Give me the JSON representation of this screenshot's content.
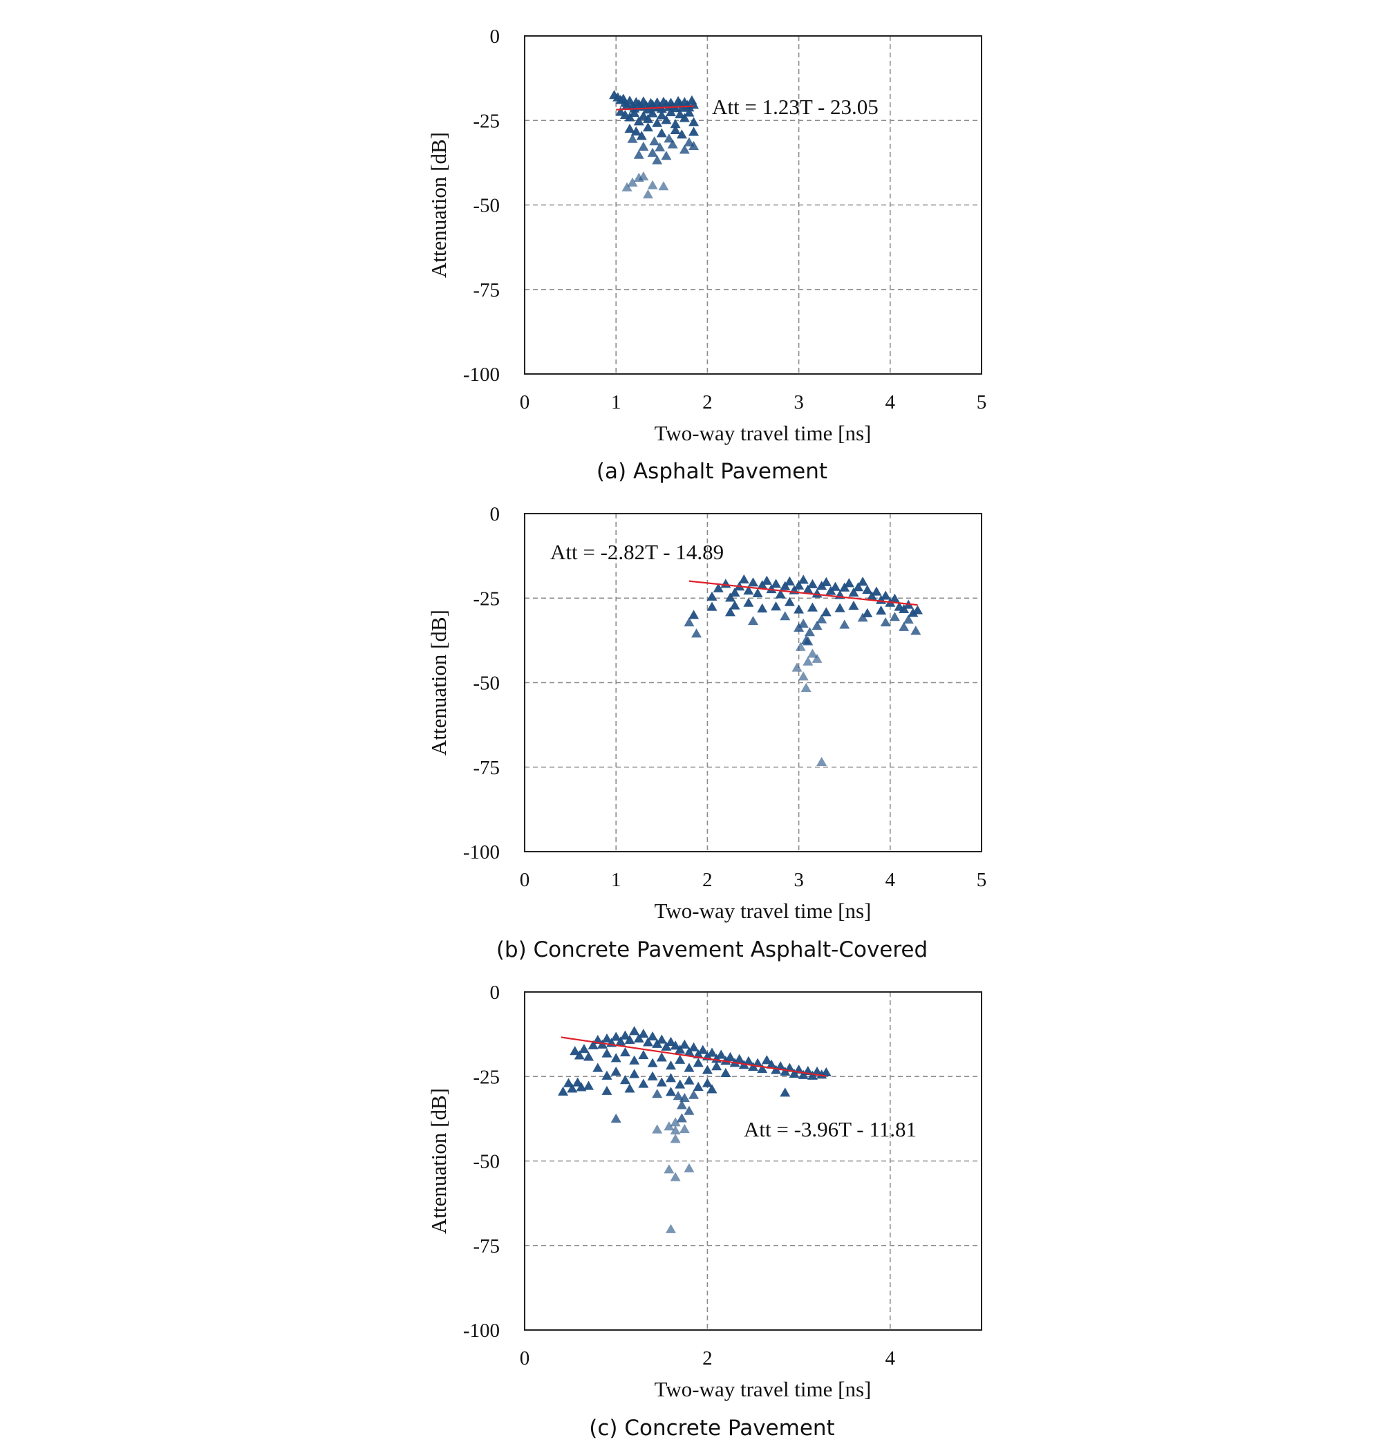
{
  "colors": {
    "marker": "#1f4e82",
    "fit_line": "#e0212a",
    "grid": "#8c8c8c"
  },
  "chart_data": [
    {
      "type": "scatter",
      "caption": "(a) Asphalt Pavement",
      "xlabel": "Two-way travel time [ns]",
      "ylabel": "Attenuation  [dB]",
      "xlim": [
        0,
        5
      ],
      "ylim": [
        -100,
        0
      ],
      "x_ticks": [
        "0",
        "1",
        "2",
        "3",
        "4",
        "5"
      ],
      "y_ticks": [
        "0",
        "-25",
        "-50",
        "-75",
        "-100"
      ],
      "equation": "Att = 1.23T - 23.05",
      "fit": {
        "slope": 1.23,
        "intercept": -23.05,
        "x_range": [
          1.0,
          1.85
        ]
      },
      "points": [
        [
          0.98,
          -17.5
        ],
        [
          1.02,
          -18.2
        ],
        [
          1.05,
          -19.0
        ],
        [
          1.08,
          -18.6
        ],
        [
          1.1,
          -19.8
        ],
        [
          1.12,
          -20.5
        ],
        [
          1.15,
          -19.2
        ],
        [
          1.18,
          -20.8
        ],
        [
          1.2,
          -21.5
        ],
        [
          1.22,
          -19.6
        ],
        [
          1.25,
          -20.2
        ],
        [
          1.28,
          -21.0
        ],
        [
          1.3,
          -19.4
        ],
        [
          1.33,
          -20.6
        ],
        [
          1.35,
          -21.8
        ],
        [
          1.38,
          -19.9
        ],
        [
          1.4,
          -20.4
        ],
        [
          1.42,
          -21.2
        ],
        [
          1.45,
          -19.7
        ],
        [
          1.48,
          -20.9
        ],
        [
          1.5,
          -21.6
        ],
        [
          1.52,
          -19.5
        ],
        [
          1.55,
          -20.3
        ],
        [
          1.58,
          -21.1
        ],
        [
          1.6,
          -19.8
        ],
        [
          1.62,
          -20.7
        ],
        [
          1.65,
          -21.4
        ],
        [
          1.68,
          -19.3
        ],
        [
          1.7,
          -20.1
        ],
        [
          1.72,
          -21.3
        ],
        [
          1.75,
          -19.6
        ],
        [
          1.78,
          -20.5
        ],
        [
          1.8,
          -21.2
        ],
        [
          1.83,
          -19.1
        ],
        [
          1.85,
          -20.4
        ],
        [
          1.05,
          -22.5
        ],
        [
          1.1,
          -23.4
        ],
        [
          1.15,
          -24.1
        ],
        [
          1.2,
          -22.8
        ],
        [
          1.25,
          -25.3
        ],
        [
          1.3,
          -23.7
        ],
        [
          1.35,
          -24.6
        ],
        [
          1.4,
          -22.9
        ],
        [
          1.45,
          -25.8
        ],
        [
          1.5,
          -23.5
        ],
        [
          1.55,
          -24.9
        ],
        [
          1.6,
          -22.6
        ],
        [
          1.65,
          -26.1
        ],
        [
          1.7,
          -23.2
        ],
        [
          1.75,
          -24.3
        ],
        [
          1.8,
          -22.7
        ],
        [
          1.85,
          -25.5
        ],
        [
          1.15,
          -27.5
        ],
        [
          1.22,
          -28.3
        ],
        [
          1.28,
          -29.6
        ],
        [
          1.35,
          -27.1
        ],
        [
          1.42,
          -31.2
        ],
        [
          1.5,
          -28.8
        ],
        [
          1.58,
          -30.4
        ],
        [
          1.65,
          -27.9
        ],
        [
          1.72,
          -29.2
        ],
        [
          1.8,
          -31.5
        ],
        [
          1.85,
          -28.4
        ],
        [
          1.18,
          -30.5
        ],
        [
          1.3,
          -32.8
        ],
        [
          1.4,
          -34.6
        ],
        [
          1.48,
          -33.0
        ],
        [
          1.55,
          -35.5
        ],
        [
          1.62,
          -32.1
        ],
        [
          1.75,
          -33.7
        ],
        [
          1.25,
          -35.2
        ],
        [
          1.45,
          -36.8
        ],
        [
          1.85,
          -32.6
        ],
        [
          1.12,
          -44.8
        ],
        [
          1.18,
          -43.4
        ],
        [
          1.3,
          -41.6
        ],
        [
          1.35,
          -46.9
        ],
        [
          1.4,
          -44.2
        ],
        [
          1.52,
          -44.5
        ],
        [
          1.25,
          -42.0
        ]
      ]
    },
    {
      "type": "scatter",
      "caption": "(b) Concrete Pavement Asphalt-Covered",
      "xlabel": "Two-way travel time [ns]",
      "ylabel": "Attenuation  [dB]",
      "xlim": [
        0,
        5
      ],
      "ylim": [
        -100,
        0
      ],
      "x_ticks": [
        "0",
        "1",
        "2",
        "3",
        "4",
        "5"
      ],
      "y_ticks": [
        "0",
        "-25",
        "-50",
        "-75",
        "-100"
      ],
      "equation": "Att = -2.82T - 14.89",
      "fit": {
        "slope": -2.82,
        "intercept": -14.89,
        "x_range": [
          1.8,
          4.3
        ]
      },
      "points": [
        [
          1.8,
          -32.2
        ],
        [
          1.85,
          -30.0
        ],
        [
          1.88,
          -35.5
        ],
        [
          2.05,
          -24.6
        ],
        [
          2.12,
          -22.1
        ],
        [
          2.2,
          -20.8
        ],
        [
          2.25,
          -24.9
        ],
        [
          2.3,
          -23.4
        ],
        [
          2.35,
          -21.6
        ],
        [
          2.4,
          -19.5
        ],
        [
          2.45,
          -22.8
        ],
        [
          2.5,
          -20.4
        ],
        [
          2.55,
          -23.6
        ],
        [
          2.6,
          -21.2
        ],
        [
          2.65,
          -19.9
        ],
        [
          2.7,
          -22.4
        ],
        [
          2.75,
          -20.8
        ],
        [
          2.8,
          -23.9
        ],
        [
          2.85,
          -21.5
        ],
        [
          2.9,
          -20.1
        ],
        [
          2.95,
          -22.7
        ],
        [
          3.0,
          -21.3
        ],
        [
          3.05,
          -19.6
        ],
        [
          3.1,
          -22.5
        ],
        [
          3.15,
          -20.9
        ],
        [
          3.2,
          -23.7
        ],
        [
          3.25,
          -21.4
        ],
        [
          3.3,
          -20.3
        ],
        [
          3.35,
          -22.9
        ],
        [
          3.4,
          -21.7
        ],
        [
          3.45,
          -24.1
        ],
        [
          3.5,
          -21.9
        ],
        [
          3.55,
          -20.6
        ],
        [
          3.6,
          -23.4
        ],
        [
          3.65,
          -21.8
        ],
        [
          3.7,
          -20.2
        ],
        [
          3.75,
          -22.6
        ],
        [
          3.8,
          -24.5
        ],
        [
          3.85,
          -23.1
        ],
        [
          3.9,
          -25.6
        ],
        [
          3.95,
          -24.3
        ],
        [
          4.0,
          -26.4
        ],
        [
          4.05,
          -25.2
        ],
        [
          4.1,
          -27.6
        ],
        [
          4.15,
          -28.3
        ],
        [
          4.2,
          -27.0
        ],
        [
          4.25,
          -29.4
        ],
        [
          4.3,
          -28.6
        ],
        [
          2.3,
          -27.2
        ],
        [
          2.45,
          -26.4
        ],
        [
          2.6,
          -28.1
        ],
        [
          2.75,
          -27.5
        ],
        [
          2.9,
          -26.2
        ],
        [
          3.0,
          -28.4
        ],
        [
          3.15,
          -27.8
        ],
        [
          3.3,
          -29.2
        ],
        [
          3.45,
          -28.0
        ],
        [
          3.6,
          -27.3
        ],
        [
          3.75,
          -29.5
        ],
        [
          3.9,
          -28.7
        ],
        [
          4.05,
          -30.6
        ],
        [
          4.2,
          -31.4
        ],
        [
          2.5,
          -31.8
        ],
        [
          2.85,
          -30.4
        ],
        [
          3.05,
          -32.6
        ],
        [
          3.25,
          -31.3
        ],
        [
          3.5,
          -32.9
        ],
        [
          3.7,
          -30.8
        ],
        [
          3.95,
          -32.2
        ],
        [
          4.15,
          -33.6
        ],
        [
          4.28,
          -34.7
        ],
        [
          2.05,
          -27.6
        ],
        [
          2.25,
          -29.2
        ],
        [
          3.0,
          -33.8
        ],
        [
          3.08,
          -37.5
        ],
        [
          3.12,
          -35.1
        ],
        [
          3.2,
          -33.2
        ],
        [
          3.02,
          -39.5
        ],
        [
          3.1,
          -37.8
        ],
        [
          2.98,
          -45.6
        ],
        [
          3.05,
          -48.2
        ],
        [
          3.1,
          -43.8
        ],
        [
          3.15,
          -41.5
        ],
        [
          3.2,
          -43.0
        ],
        [
          3.08,
          -51.6
        ],
        [
          3.25,
          -73.5
        ]
      ]
    },
    {
      "type": "scatter",
      "caption": "(c) Concrete Pavement",
      "xlabel": "Two-way travel time [ns]",
      "ylabel": "Attenuation  [dB]",
      "xlim": [
        0,
        5
      ],
      "ylim": [
        -100,
        0
      ],
      "x_ticks": [
        "0",
        "2",
        "4"
      ],
      "y_ticks": [
        "0",
        "-25",
        "-50",
        "-75",
        "-100"
      ],
      "equation": "Att = -3.96T - 11.81",
      "fit": {
        "slope": -3.96,
        "intercept": -11.81,
        "x_range": [
          0.4,
          3.3
        ]
      },
      "points": [
        [
          0.42,
          -29.5
        ],
        [
          0.48,
          -27.0
        ],
        [
          0.52,
          -28.6
        ],
        [
          0.58,
          -26.8
        ],
        [
          0.62,
          -28.2
        ],
        [
          0.55,
          -17.5
        ],
        [
          0.6,
          -18.8
        ],
        [
          0.65,
          -16.9
        ],
        [
          0.7,
          -19.2
        ],
        [
          0.75,
          -15.8
        ],
        [
          0.8,
          -14.2
        ],
        [
          0.85,
          -15.6
        ],
        [
          0.9,
          -13.8
        ],
        [
          0.95,
          -15.1
        ],
        [
          1.0,
          -13.3
        ],
        [
          1.05,
          -14.7
        ],
        [
          1.1,
          -12.9
        ],
        [
          1.15,
          -14.2
        ],
        [
          1.2,
          -11.6
        ],
        [
          1.25,
          -13.8
        ],
        [
          1.3,
          -12.4
        ],
        [
          1.35,
          -14.9
        ],
        [
          1.4,
          -13.2
        ],
        [
          1.45,
          -15.4
        ],
        [
          1.5,
          -14.1
        ],
        [
          1.55,
          -16.2
        ],
        [
          1.6,
          -14.8
        ],
        [
          1.65,
          -15.9
        ],
        [
          1.7,
          -17.1
        ],
        [
          1.75,
          -15.6
        ],
        [
          1.8,
          -17.8
        ],
        [
          1.85,
          -16.4
        ],
        [
          1.9,
          -18.5
        ],
        [
          1.95,
          -17.2
        ],
        [
          2.0,
          -19.1
        ],
        [
          2.05,
          -18.0
        ],
        [
          2.1,
          -19.8
        ],
        [
          2.15,
          -18.6
        ],
        [
          2.2,
          -20.4
        ],
        [
          2.25,
          -19.3
        ],
        [
          2.3,
          -21.0
        ],
        [
          2.35,
          -19.9
        ],
        [
          2.4,
          -21.6
        ],
        [
          2.45,
          -20.5
        ],
        [
          2.5,
          -22.2
        ],
        [
          2.55,
          -21.1
        ],
        [
          2.6,
          -22.8
        ],
        [
          2.65,
          -20.2
        ],
        [
          2.7,
          -21.5
        ],
        [
          2.75,
          -23.1
        ],
        [
          2.8,
          -22.0
        ],
        [
          2.85,
          -23.6
        ],
        [
          2.9,
          -22.5
        ],
        [
          2.95,
          -24.2
        ],
        [
          3.0,
          -23.0
        ],
        [
          3.05,
          -24.6
        ],
        [
          3.1,
          -23.4
        ],
        [
          3.15,
          -24.8
        ],
        [
          3.2,
          -23.6
        ],
        [
          3.25,
          -24.5
        ],
        [
          3.3,
          -23.8
        ],
        [
          0.9,
          -18.2
        ],
        [
          1.0,
          -19.6
        ],
        [
          1.1,
          -17.9
        ],
        [
          1.2,
          -20.3
        ],
        [
          1.3,
          -18.7
        ],
        [
          1.4,
          -21.1
        ],
        [
          1.5,
          -19.4
        ],
        [
          1.6,
          -21.8
        ],
        [
          1.7,
          -20.1
        ],
        [
          1.8,
          -22.5
        ],
        [
          1.9,
          -21.0
        ],
        [
          2.0,
          -23.1
        ],
        [
          2.1,
          -22.0
        ],
        [
          2.2,
          -24.0
        ],
        [
          0.8,
          -22.5
        ],
        [
          0.9,
          -24.8
        ],
        [
          1.0,
          -23.6
        ],
        [
          1.1,
          -26.1
        ],
        [
          1.2,
          -24.3
        ],
        [
          1.3,
          -27.2
        ],
        [
          1.4,
          -25.0
        ],
        [
          1.5,
          -26.8
        ],
        [
          1.6,
          -25.5
        ],
        [
          1.7,
          -27.4
        ],
        [
          1.8,
          -26.2
        ],
        [
          1.9,
          -28.1
        ],
        [
          2.0,
          -27.0
        ],
        [
          0.7,
          -27.8
        ],
        [
          0.9,
          -29.3
        ],
        [
          1.15,
          -28.6
        ],
        [
          1.45,
          -30.2
        ],
        [
          1.6,
          -29.6
        ],
        [
          1.75,
          -31.4
        ],
        [
          1.85,
          -30.5
        ],
        [
          2.05,
          -28.8
        ],
        [
          1.68,
          -30.8
        ],
        [
          1.72,
          -33.5
        ],
        [
          1.8,
          -35.2
        ],
        [
          1.72,
          -37.4
        ],
        [
          1.65,
          -38.6
        ],
        [
          1.58,
          -39.8
        ],
        [
          1.65,
          -41.0
        ],
        [
          1.45,
          -40.7
        ],
        [
          1.65,
          -43.5
        ],
        [
          1.75,
          -40.6
        ],
        [
          1.0,
          -37.5
        ],
        [
          2.85,
          -29.8
        ],
        [
          1.58,
          -52.5
        ],
        [
          1.65,
          -54.8
        ],
        [
          1.8,
          -52.2
        ],
        [
          1.6,
          -70.2
        ]
      ]
    }
  ]
}
